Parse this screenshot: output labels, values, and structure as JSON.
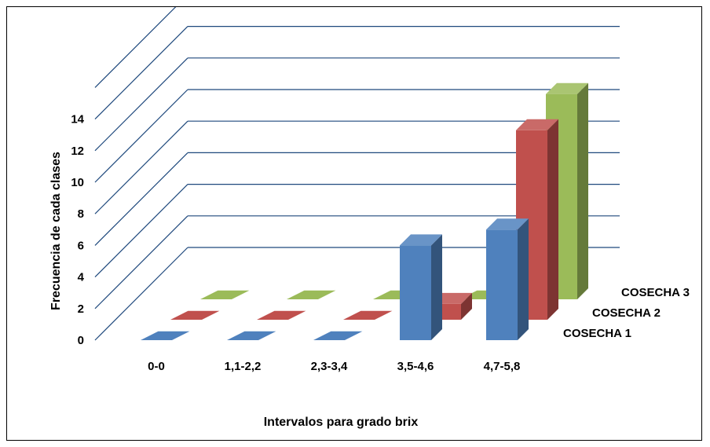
{
  "chart_data": {
    "type": "bar",
    "title": "",
    "xlabel": "Intervalos para grado brix",
    "ylabel": "Frecuencia de cada clases",
    "categories": [
      "0-0",
      "1,1-2,2",
      "2,3-3,4",
      "3,5-4,6",
      "4,7-5,8"
    ],
    "series": [
      {
        "name": "COSECHA 1",
        "values": [
          0,
          0,
          0,
          6,
          7
        ],
        "color": "#4F81BD"
      },
      {
        "name": "COSECHA 2",
        "values": [
          0,
          0,
          0,
          1,
          12
        ],
        "color": "#C0504D"
      },
      {
        "name": "COSECHA 3",
        "values": [
          0,
          0,
          0,
          0,
          13
        ],
        "color": "#9BBB59"
      }
    ],
    "yticks": [
      "0",
      "2",
      "4",
      "6",
      "8",
      "10",
      "12",
      "14"
    ],
    "ylim": [
      0,
      16
    ],
    "grid": true,
    "legend": "right",
    "gridline_color": "#1F497D"
  }
}
